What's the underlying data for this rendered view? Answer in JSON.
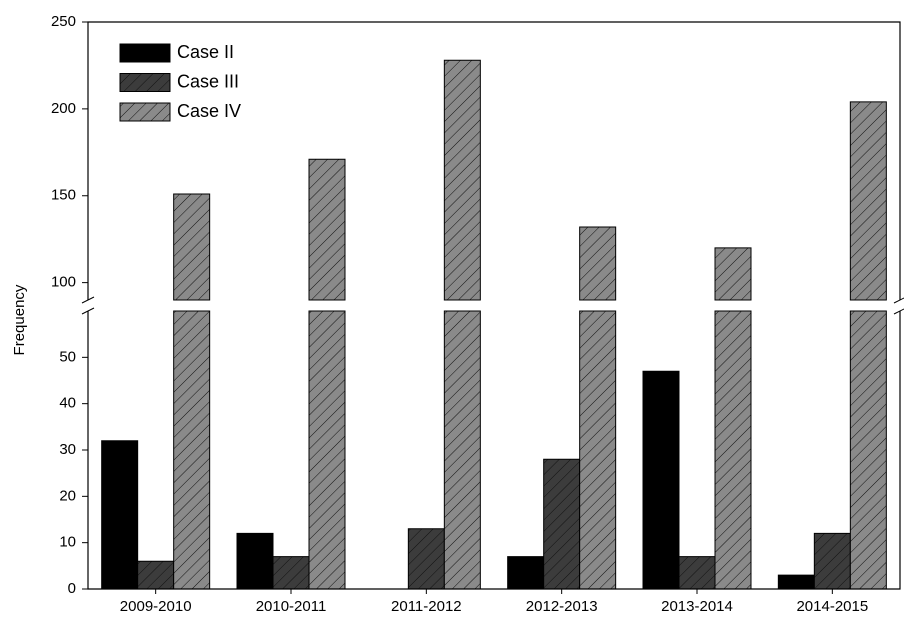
{
  "chart_data": {
    "type": "bar",
    "y_label": "Frequency",
    "categories": [
      "2009-2010",
      "2010-2011",
      "2011-2012",
      "2012-2013",
      "2013-2014",
      "2014-2015"
    ],
    "series": [
      {
        "name": "Case II",
        "color": "#000000",
        "hatch": false,
        "values": [
          32,
          12,
          0,
          7,
          47,
          3
        ]
      },
      {
        "name": "Case III",
        "color": "#3c3c3c",
        "hatch": true,
        "values": [
          6,
          7,
          13,
          28,
          7,
          12
        ]
      },
      {
        "name": "Case IV",
        "color": "#8a8a8a",
        "hatch": true,
        "values": [
          151,
          171,
          228,
          132,
          120,
          204
        ]
      }
    ],
    "ylim": [
      0,
      250
    ],
    "y_break": [
      60,
      90
    ],
    "yticks": [
      0,
      10,
      20,
      30,
      40,
      50,
      100,
      150,
      200,
      250
    ],
    "legend": "top-left"
  }
}
